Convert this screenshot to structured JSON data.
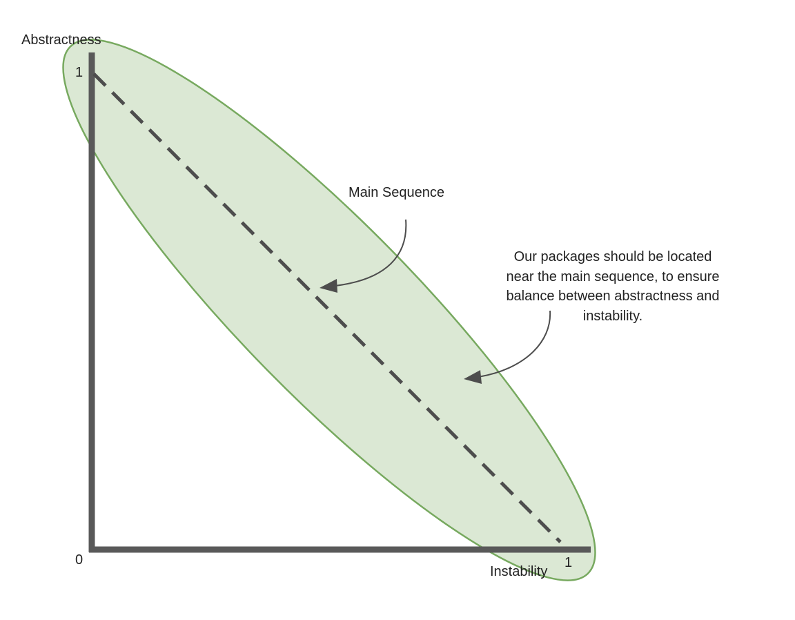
{
  "axes": {
    "y_label": "Abstractness",
    "x_label": "Instability",
    "y_max_tick": "1",
    "x_max_tick": "1",
    "origin_tick": "0"
  },
  "main_sequence": {
    "label": "Main Sequence",
    "from": [
      0,
      1
    ],
    "to": [
      1,
      0
    ]
  },
  "note": {
    "lines": [
      "Our packages should be located",
      "near the main sequence, to ensure",
      "balance between abstractness and",
      "instability."
    ]
  },
  "colors": {
    "axis": "#595959",
    "dashed_line": "#4d4d4d",
    "zone_fill": "#dbe8d4",
    "zone_stroke": "#77a95f",
    "arrow": "#4d4d4d",
    "text": "#222222"
  }
}
